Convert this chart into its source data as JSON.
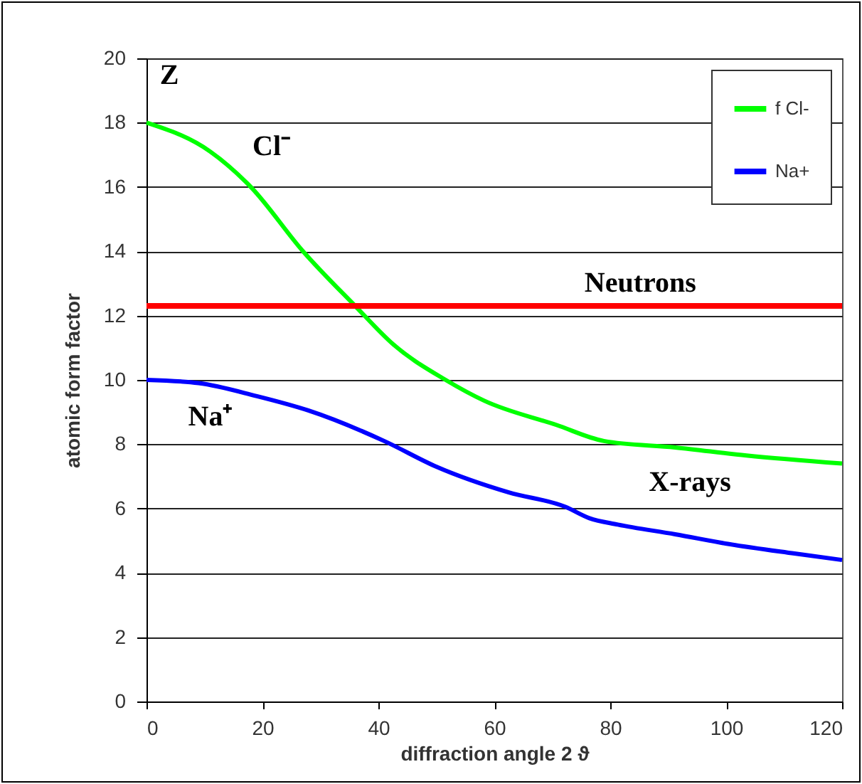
{
  "chart_data": {
    "type": "line",
    "xlabel": "diffraction angle 2 ϑ",
    "ylabel": "atomic form factor",
    "xlim": [
      0,
      120
    ],
    "ylim": [
      0,
      20
    ],
    "xticks": [
      0,
      20,
      40,
      60,
      80,
      100,
      120
    ],
    "yticks": [
      0,
      2,
      4,
      6,
      8,
      10,
      12,
      14,
      16,
      18,
      20
    ],
    "grid": "y",
    "legend": "top right",
    "line_style": "solid",
    "series": [
      {
        "name": "f Cl-",
        "color": "#00ff00",
        "x": [
          0,
          11,
          18,
          27,
          36,
          42.6,
          51.6,
          58.3,
          70.7,
          78.9,
          91.2,
          103.5,
          120
        ],
        "values": [
          18,
          17.1,
          16,
          14,
          12.3,
          11.1,
          10,
          9.35,
          8.6,
          8.1,
          7.9,
          7.65,
          7.4
        ]
      },
      {
        "name": "Na+",
        "color": "#0000ff",
        "x": [
          0,
          9,
          18.9,
          27.9,
          41,
          50,
          62.5,
          72.3,
          76.4,
          81.3,
          91.2,
          100.3,
          111.8,
          120
        ],
        "values": [
          10,
          9.9,
          9.5,
          9.05,
          8.1,
          7.3,
          6.5,
          6.05,
          5.7,
          5.5,
          5.2,
          4.9,
          4.6,
          4.4
        ]
      }
    ],
    "ref_lines": [
      {
        "axis": "y",
        "value": 12.3,
        "label": "Neutrons",
        "color": "#ff0000"
      }
    ],
    "annotations": [
      "Z",
      "Cl⁻",
      "Na⁺",
      "X-rays"
    ]
  }
}
